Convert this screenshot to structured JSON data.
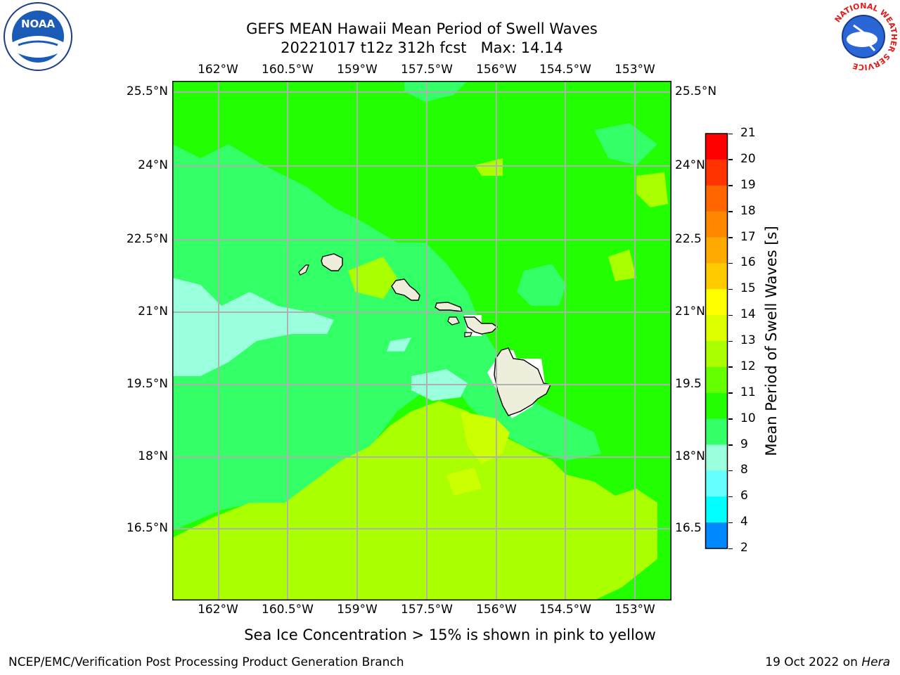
{
  "title": {
    "line1": "GEFS MEAN Hawaii Mean Period of Swell Waves",
    "line2": "20221017 t12z 312h fcst   Max: 14.14"
  },
  "map": {
    "lon_labels": [
      "162°W",
      "160.5°W",
      "159°W",
      "157.5°W",
      "156°W",
      "154.5°W",
      "153°W"
    ],
    "lat_labels": [
      "25.5°N",
      "24°N",
      "22.5°N",
      "21°N",
      "19.5°N",
      "18°N",
      "16.5°N"
    ],
    "lat_labels_right": [
      "25.5°N",
      "24°N",
      "22.5",
      "21°N",
      "19.5",
      "18°N",
      "16.5"
    ]
  },
  "colorbar": {
    "label": "Mean Period of Swell Waves [s]",
    "ticks": [
      "21",
      "20",
      "19",
      "18",
      "17",
      "16",
      "15",
      "14",
      "13",
      "12",
      "11",
      "10",
      "9",
      "8",
      "6",
      "4",
      "2"
    ],
    "colors": [
      "#ff0000",
      "#ff3300",
      "#ff6600",
      "#ff8800",
      "#ffaa00",
      "#ffcc00",
      "#ffff00",
      "#ddff00",
      "#aaff00",
      "#66ff00",
      "#22ff00",
      "#33ff66",
      "#99ffdd",
      "#66ffff",
      "#00ffff",
      "#0088ff",
      "#0000ff"
    ]
  },
  "note": "Sea Ice Concentration > 15% is shown in pink to yellow",
  "footer": {
    "left": "NCEP/EMC/Verification Post Processing Product Generation Branch",
    "right_prefix": "19 Oct 2022 on ",
    "right_italic": "Hera"
  },
  "logos": {
    "noaa": "NOAA",
    "nws": "NATIONAL WEATHER SERVICE"
  },
  "colors": {
    "field_base": "#22ff00",
    "land": "#efeedd",
    "grid": "#b0b0b0"
  }
}
